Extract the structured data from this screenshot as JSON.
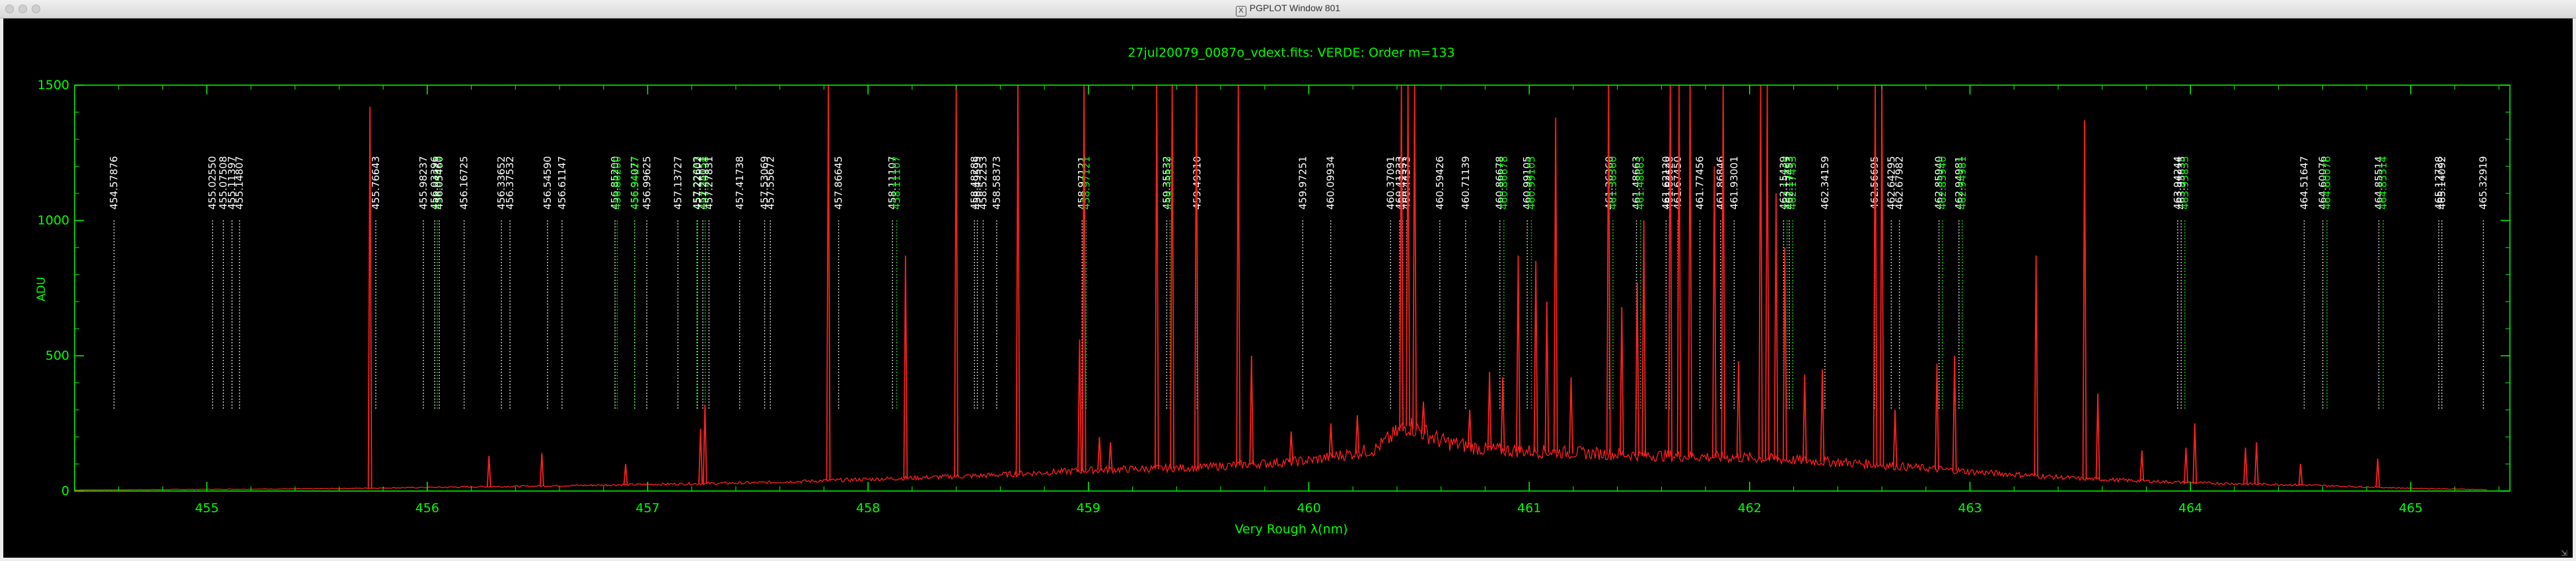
{
  "window": {
    "title": "PGPLOT Window 801",
    "app_icon": "x11-icon"
  },
  "colors": {
    "axes": "#00ff00",
    "spectrum": "#ff2020",
    "white_lines": "#ffffff",
    "green_lines": "#00ff00",
    "background": "#000000"
  },
  "chart_data": {
    "type": "line",
    "title": "27jul20079_0087o_vdext.fits: VERDE: Order m=133",
    "xlabel": "Very Rough λ(nm)",
    "ylabel": "ADU",
    "xlim": [
      454.4,
      465.45
    ],
    "ylim": [
      0,
      1500
    ],
    "xticks": [
      455,
      456,
      457,
      458,
      459,
      460,
      461,
      462,
      463,
      464,
      465
    ],
    "yticks": [
      0,
      500,
      1000,
      1500
    ],
    "grid": false,
    "series": [
      {
        "continuum": [
          [
            454.4,
            4
          ],
          [
            455.5,
            8
          ],
          [
            456.5,
            18
          ],
          [
            457.5,
            30
          ],
          [
            458.5,
            55
          ],
          [
            459.0,
            75
          ],
          [
            459.5,
            85
          ],
          [
            460.0,
            110
          ],
          [
            460.3,
            150
          ],
          [
            460.45,
            240
          ],
          [
            460.6,
            180
          ],
          [
            460.8,
            150
          ],
          [
            461.5,
            130
          ],
          [
            462.0,
            120
          ],
          [
            462.5,
            100
          ],
          [
            463.0,
            70
          ],
          [
            463.5,
            45
          ],
          [
            464.0,
            30
          ],
          [
            464.5,
            22
          ],
          [
            465.0,
            10
          ],
          [
            465.35,
            5
          ]
        ]
      }
    ],
    "emission_peaks": [
      [
        455.74,
        1420
      ],
      [
        456.28,
        130
      ],
      [
        456.52,
        140
      ],
      [
        456.9,
        100
      ],
      [
        457.24,
        230
      ],
      [
        457.26,
        320
      ],
      [
        457.82,
        1500
      ],
      [
        458.17,
        870
      ],
      [
        458.4,
        1500
      ],
      [
        458.68,
        1500
      ],
      [
        458.96,
        560
      ],
      [
        458.98,
        1500
      ],
      [
        459.05,
        200
      ],
      [
        459.1,
        180
      ],
      [
        459.31,
        1500
      ],
      [
        459.38,
        1500
      ],
      [
        459.49,
        1500
      ],
      [
        459.68,
        1500
      ],
      [
        459.74,
        500
      ],
      [
        459.92,
        220
      ],
      [
        460.1,
        250
      ],
      [
        460.22,
        280
      ],
      [
        460.42,
        1500
      ],
      [
        460.45,
        1500
      ],
      [
        460.48,
        1500
      ],
      [
        460.52,
        330
      ],
      [
        460.73,
        300
      ],
      [
        460.82,
        440
      ],
      [
        460.88,
        420
      ],
      [
        460.95,
        870
      ],
      [
        461.03,
        850
      ],
      [
        461.08,
        700
      ],
      [
        461.12,
        1380
      ],
      [
        461.19,
        420
      ],
      [
        461.36,
        1500
      ],
      [
        461.42,
        680
      ],
      [
        461.49,
        770
      ],
      [
        461.52,
        1000
      ],
      [
        461.64,
        1500
      ],
      [
        461.68,
        1500
      ],
      [
        461.73,
        1500
      ],
      [
        461.84,
        1200
      ],
      [
        461.88,
        1500
      ],
      [
        461.95,
        480
      ],
      [
        462.05,
        1500
      ],
      [
        462.08,
        1500
      ],
      [
        462.12,
        1100
      ],
      [
        462.16,
        900
      ],
      [
        462.25,
        430
      ],
      [
        462.33,
        450
      ],
      [
        462.57,
        1500
      ],
      [
        462.6,
        1500
      ],
      [
        462.66,
        300
      ],
      [
        462.85,
        470
      ],
      [
        462.93,
        500
      ],
      [
        463.3,
        870
      ],
      [
        463.52,
        1370
      ],
      [
        463.58,
        360
      ],
      [
        463.78,
        150
      ],
      [
        463.98,
        160
      ],
      [
        464.02,
        250
      ],
      [
        464.25,
        160
      ],
      [
        464.3,
        180
      ],
      [
        464.5,
        100
      ],
      [
        464.85,
        120
      ]
    ],
    "line_ids": [
      {
        "label": "454.57876",
        "x": 454.57876,
        "color": "white"
      },
      {
        "label": "455.02550",
        "x": 455.0255,
        "color": "white"
      },
      {
        "label": "455.07508",
        "x": 455.07508,
        "color": "white"
      },
      {
        "label": "455.11397",
        "x": 455.11397,
        "color": "white"
      },
      {
        "label": "455.14807",
        "x": 455.14807,
        "color": "white"
      },
      {
        "label": "455.76643",
        "x": 455.76643,
        "color": "white"
      },
      {
        "label": "455.98237",
        "x": 455.98237,
        "color": "white"
      },
      {
        "label": "456.04521",
        "x": 456.04521,
        "color": "green"
      },
      {
        "label": "456.03396",
        "x": 456.03396,
        "color": "white"
      },
      {
        "label": "456.05460",
        "x": 456.0546,
        "color": "white"
      },
      {
        "label": "456.16725",
        "x": 456.16725,
        "color": "white"
      },
      {
        "label": "456.33652",
        "x": 456.33652,
        "color": "white"
      },
      {
        "label": "456.37532",
        "x": 456.37532,
        "color": "white"
      },
      {
        "label": "456.54590",
        "x": 456.5459,
        "color": "white"
      },
      {
        "label": "456.61147",
        "x": 456.61147,
        "color": "white"
      },
      {
        "label": "456.85200",
        "x": 456.852,
        "color": "white"
      },
      {
        "label": "456.86200",
        "x": 456.862,
        "color": "green"
      },
      {
        "label": "456.94077",
        "x": 456.94077,
        "color": "white"
      },
      {
        "label": "456.94227",
        "x": 456.94227,
        "color": "green"
      },
      {
        "label": "456.99625",
        "x": 456.99625,
        "color": "white"
      },
      {
        "label": "457.13727",
        "x": 457.13727,
        "color": "white"
      },
      {
        "label": "457.22333",
        "x": 457.22333,
        "color": "green"
      },
      {
        "label": "457.22602",
        "x": 457.22602,
        "color": "white"
      },
      {
        "label": "457.25051",
        "x": 457.25051,
        "color": "white"
      },
      {
        "label": "457.26128",
        "x": 457.26128,
        "color": "green"
      },
      {
        "label": "457.27831",
        "x": 457.27831,
        "color": "white"
      },
      {
        "label": "457.41738",
        "x": 457.41738,
        "color": "white"
      },
      {
        "label": "457.53069",
        "x": 457.53069,
        "color": "white"
      },
      {
        "label": "457.55672",
        "x": 457.55672,
        "color": "white"
      },
      {
        "label": "457.86645",
        "x": 457.86645,
        "color": "white"
      },
      {
        "label": "458.11107",
        "x": 458.11107,
        "color": "white"
      },
      {
        "label": "458.11107",
        "x": 458.13,
        "color": "green"
      },
      {
        "label": "458.48288",
        "x": 458.48288,
        "color": "white"
      },
      {
        "label": "458.49595",
        "x": 458.49595,
        "color": "white"
      },
      {
        "label": "458.52253",
        "x": 458.52253,
        "color": "white"
      },
      {
        "label": "458.58373",
        "x": 458.58373,
        "color": "white"
      },
      {
        "label": "458.97121",
        "x": 458.97121,
        "color": "white"
      },
      {
        "label": "458.97121",
        "x": 458.99,
        "color": "green"
      },
      {
        "label": "459.35532",
        "x": 459.35532,
        "color": "white"
      },
      {
        "label": "459.35532",
        "x": 459.37,
        "color": "green"
      },
      {
        "label": "459.49310",
        "x": 459.4931,
        "color": "white"
      },
      {
        "label": "459.97251",
        "x": 459.97251,
        "color": "white"
      },
      {
        "label": "460.09934",
        "x": 460.09934,
        "color": "white"
      },
      {
        "label": "460.37091",
        "x": 460.37091,
        "color": "white"
      },
      {
        "label": "460.41233",
        "x": 460.41233,
        "color": "white"
      },
      {
        "label": "460.42557",
        "x": 460.42557,
        "color": "white"
      },
      {
        "label": "460.44373",
        "x": 460.44373,
        "color": "white"
      },
      {
        "label": "460.59426",
        "x": 460.59426,
        "color": "white"
      },
      {
        "label": "460.71139",
        "x": 460.71139,
        "color": "white"
      },
      {
        "label": "460.86678",
        "x": 460.86678,
        "color": "white"
      },
      {
        "label": "460.86678",
        "x": 460.885,
        "color": "green"
      },
      {
        "label": "460.99105",
        "x": 460.99105,
        "color": "white"
      },
      {
        "label": "460.99105",
        "x": 461.01,
        "color": "green"
      },
      {
        "label": "461.36360",
        "x": 461.3636,
        "color": "white"
      },
      {
        "label": "461.36360",
        "x": 461.38,
        "color": "green"
      },
      {
        "label": "461.48663",
        "x": 461.48663,
        "color": "white"
      },
      {
        "label": "461.48663",
        "x": 461.505,
        "color": "green"
      },
      {
        "label": "461.62120",
        "x": 461.6212,
        "color": "white"
      },
      {
        "label": "461.63628",
        "x": 461.63628,
        "color": "white"
      },
      {
        "label": "461.67450",
        "x": 461.6745,
        "color": "white"
      },
      {
        "label": "461.77456",
        "x": 461.77456,
        "color": "white"
      },
      {
        "label": "461.86846",
        "x": 461.86846,
        "color": "white"
      },
      {
        "label": "461.93001",
        "x": 461.93001,
        "color": "white"
      },
      {
        "label": "462.15439",
        "x": 462.15439,
        "color": "white"
      },
      {
        "label": "462.15469",
        "x": 462.17,
        "color": "green"
      },
      {
        "label": "462.17453",
        "x": 462.18,
        "color": "white"
      },
      {
        "label": "462.17453",
        "x": 462.195,
        "color": "green"
      },
      {
        "label": "462.34159",
        "x": 462.34159,
        "color": "white"
      },
      {
        "label": "462.56695",
        "x": 462.56695,
        "color": "white"
      },
      {
        "label": "462.64295",
        "x": 462.64295,
        "color": "white"
      },
      {
        "label": "462.67982",
        "x": 462.67982,
        "color": "white"
      },
      {
        "label": "462.85940",
        "x": 462.8594,
        "color": "white"
      },
      {
        "label": "462.85940",
        "x": 462.875,
        "color": "green"
      },
      {
        "label": "462.94981",
        "x": 462.94981,
        "color": "white"
      },
      {
        "label": "462.94981",
        "x": 462.965,
        "color": "green"
      },
      {
        "label": "463.94244",
        "x": 463.94244,
        "color": "white"
      },
      {
        "label": "463.95835",
        "x": 463.95835,
        "color": "white"
      },
      {
        "label": "463.95835",
        "x": 463.975,
        "color": "green"
      },
      {
        "label": "464.51647",
        "x": 464.51647,
        "color": "white"
      },
      {
        "label": "464.60076",
        "x": 464.60076,
        "color": "white"
      },
      {
        "label": "464.60076",
        "x": 464.62,
        "color": "green"
      },
      {
        "label": "464.85514",
        "x": 464.85514,
        "color": "white"
      },
      {
        "label": "464.85514",
        "x": 464.875,
        "color": "green"
      },
      {
        "label": "465.12728",
        "x": 465.12728,
        "color": "white"
      },
      {
        "label": "465.14092",
        "x": 465.14092,
        "color": "white"
      },
      {
        "label": "465.32919",
        "x": 465.32919,
        "color": "white"
      }
    ]
  }
}
